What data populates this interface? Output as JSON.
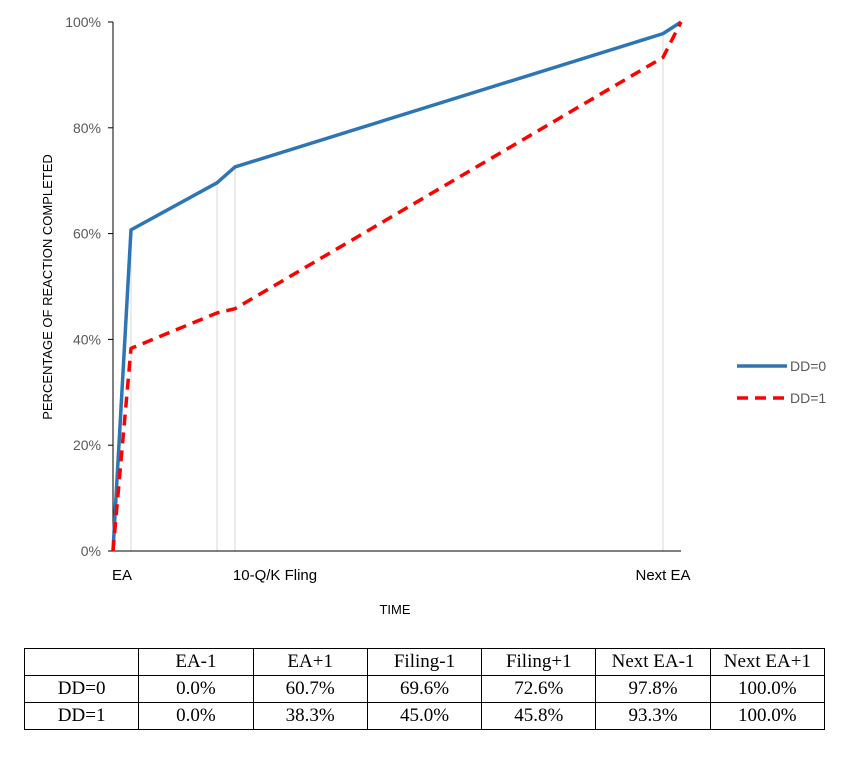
{
  "chart_data": {
    "type": "line",
    "title": "",
    "xlabel": "TIME",
    "ylabel": "PERCENTAGE OF REACTION COMPLETED",
    "ylim": [
      0,
      100
    ],
    "y_ticks": [
      "0%",
      "20%",
      "40%",
      "60%",
      "80%",
      "100%"
    ],
    "y_tick_values": [
      0,
      20,
      40,
      60,
      80,
      100
    ],
    "x_labels": [
      "EA",
      "10-Q/K Fling",
      "Next EA"
    ],
    "x_points": [
      "EA-1",
      "EA+1",
      "Filing-1",
      "Filing+1",
      "Next EA-1",
      "Next EA+1"
    ],
    "grid": false,
    "legend_position": "right",
    "series": [
      {
        "name": "DD=0",
        "values": [
          0,
          60.7,
          69.6,
          72.6,
          97.8,
          100
        ],
        "color": "#2E75B6",
        "style": "solid"
      },
      {
        "name": "DD=1",
        "values": [
          0,
          38.3,
          45.0,
          45.8,
          93.3,
          100
        ],
        "color": "#FF0000",
        "style": "dashed"
      }
    ]
  },
  "table": {
    "headers": [
      "",
      "EA-1",
      "EA+1",
      "Filing-1",
      "Filing+1",
      "Next EA-1",
      "Next EA+1"
    ],
    "rows": [
      {
        "label": "DD=0",
        "cells": [
          "0.0%",
          "60.7%",
          "69.6%",
          "72.6%",
          "97.8%",
          "100.0%"
        ]
      },
      {
        "label": "DD=1",
        "cells": [
          "0.0%",
          "38.3%",
          "45.0%",
          "45.8%",
          "93.3%",
          "100.0%"
        ]
      }
    ]
  }
}
